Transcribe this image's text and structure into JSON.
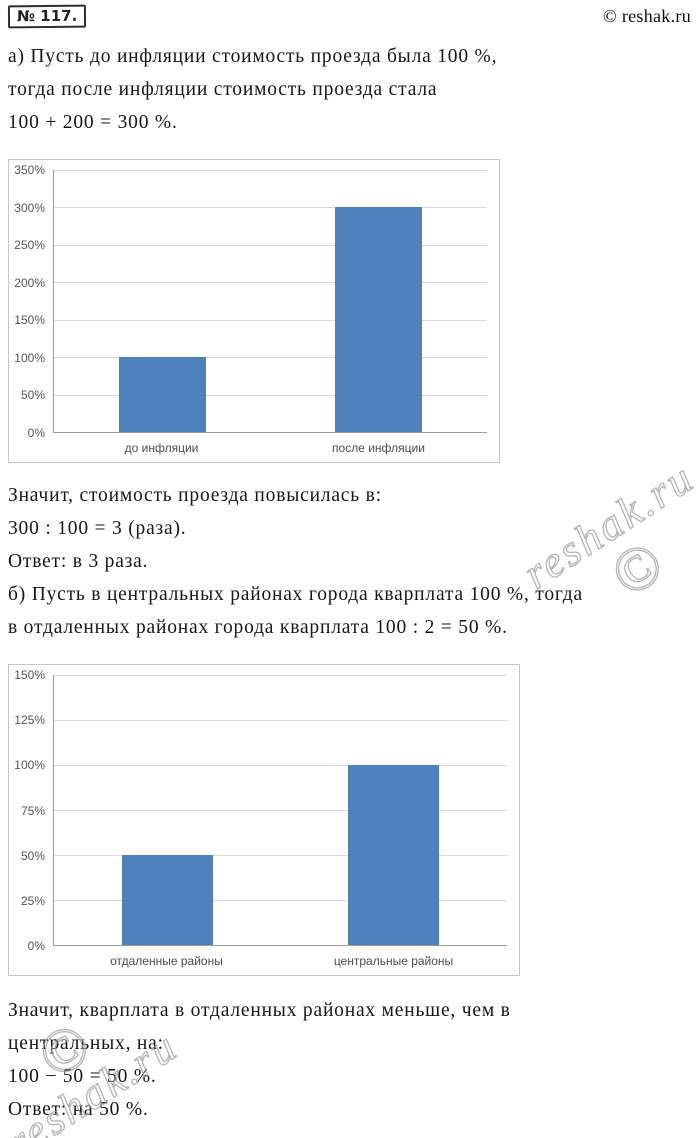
{
  "header": {
    "problem_number": "№ 117.",
    "site_credit": "© reshak.ru"
  },
  "watermark": {
    "symbol": "©",
    "text": "reshak.ru"
  },
  "solution_a": {
    "intro_lines": [
      "а) Пусть до инфляции стоимость проезда была 100 %,",
      "тогда после инфляции стоимость проезда стала",
      "100 + 200 = 300 %."
    ],
    "after_chart_lines": [
      "Значит, стоимость проезда повысилась в:",
      "300 : 100 = 3 (раза).",
      "Ответ: в 3 раза.",
      "б) Пусть в центральных районах города кварплата 100 %, тогда",
      "в отдаленных районах города кварплата 100 : 2 = 50 %."
    ]
  },
  "solution_b": {
    "after_chart_lines": [
      "Значит, кварплата в отдаленных районах меньше, чем в",
      "центральных, на:",
      "100 − 50 = 50 %.",
      "Ответ: на 50 %."
    ]
  },
  "chart_data": [
    {
      "type": "bar",
      "title": "",
      "xlabel": "",
      "ylabel": "",
      "categories": [
        "до инфляции",
        "после инфляции"
      ],
      "values": [
        100,
        300
      ],
      "ylim": [
        0,
        350
      ],
      "yticks": [
        "350%",
        "300%",
        "250%",
        "200%",
        "150%",
        "100%",
        "50%",
        "0%"
      ],
      "grid": true,
      "legend": false,
      "bar_color": "#4f81bd"
    },
    {
      "type": "bar",
      "title": "",
      "xlabel": "",
      "ylabel": "",
      "categories": [
        "отдаленные районы",
        "центральные районы"
      ],
      "values": [
        50,
        100
      ],
      "ylim": [
        0,
        150
      ],
      "yticks": [
        "150%",
        "125%",
        "100%",
        "75%",
        "50%",
        "25%",
        "0%"
      ],
      "grid": true,
      "legend": false,
      "bar_color": "#4f81bd"
    }
  ]
}
